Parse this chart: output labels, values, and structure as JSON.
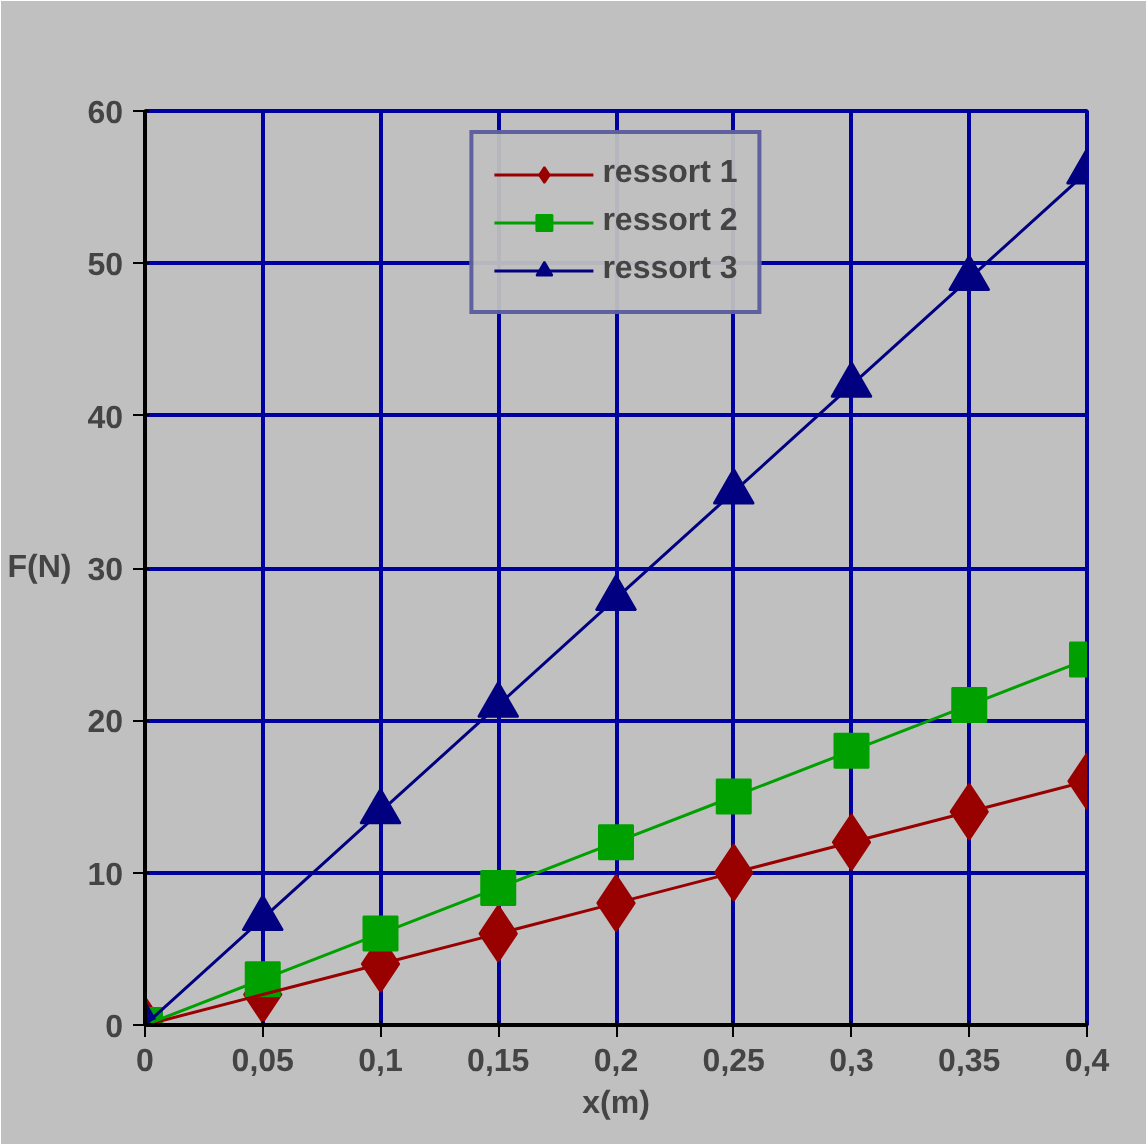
{
  "chart_data": {
    "type": "line",
    "xlabel": "x(m)",
    "ylabel": "F(N)",
    "x": [
      0,
      0.05,
      0.1,
      0.15,
      0.2,
      0.25,
      0.3,
      0.35,
      0.4
    ],
    "series": [
      {
        "name": "ressort 1",
        "color": "#990000",
        "marker": "diamond",
        "values": [
          0,
          2,
          4,
          6,
          8,
          10,
          12,
          14,
          16
        ]
      },
      {
        "name": "ressort 2",
        "color": "#00a000",
        "marker": "square",
        "values": [
          0,
          3,
          6,
          9,
          12,
          15,
          18,
          21,
          24
        ]
      },
      {
        "name": "ressort 3",
        "color": "#000080",
        "marker": "triangle",
        "values": [
          0,
          7,
          14,
          21,
          28,
          35,
          42,
          49,
          56
        ]
      }
    ],
    "xlim": [
      0,
      0.4
    ],
    "ylim": [
      0,
      60
    ],
    "xticks": [
      0,
      {
        "value": 0.05,
        "label": "0,05"
      },
      {
        "value": 0.1,
        "label": "0,1"
      },
      {
        "value": 0.15,
        "label": "0,15"
      },
      {
        "value": 0.2,
        "label": "0,2"
      },
      {
        "value": 0.25,
        "label": "0,25"
      },
      {
        "value": 0.3,
        "label": "0,3"
      },
      {
        "value": 0.35,
        "label": "0,35"
      },
      {
        "value": 0.4,
        "label": "0,4"
      }
    ],
    "yticks": [
      0,
      10,
      20,
      30,
      40,
      50,
      60
    ],
    "grid": true,
    "legend": "top",
    "line_style": "solid"
  }
}
